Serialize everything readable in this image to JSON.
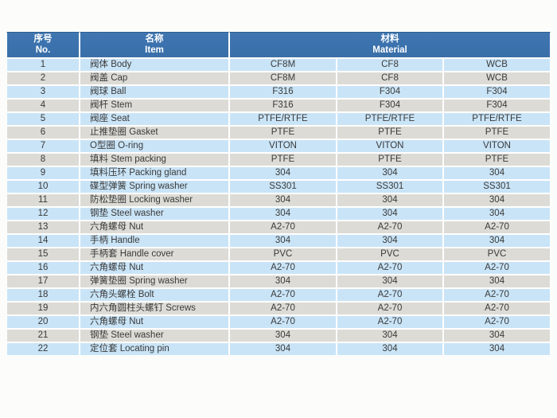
{
  "colors": {
    "header_bg": "#3b72ad",
    "header_text": "#ffffff",
    "row_blue": "#c9e4f7",
    "row_gray": "#dcdbd5",
    "cell_text": "#3a3a3a",
    "page_bg": "#fcfcfa"
  },
  "header": {
    "no_zh": "序号",
    "no_en": "No.",
    "item_zh": "名称",
    "item_en": "Item",
    "material_zh": "材料",
    "material_en": "Material"
  },
  "rows": [
    {
      "no": "1",
      "item": "阀体 Body",
      "materials": [
        "CF8M",
        "CF8",
        "WCB"
      ],
      "shade": "blue"
    },
    {
      "no": "2",
      "item": "阀盖 Cap",
      "materials": [
        "CF8M",
        "CF8",
        "WCB"
      ],
      "shade": "gray"
    },
    {
      "no": "3",
      "item": "阀球 Ball",
      "materials": [
        "F316",
        "F304",
        "F304"
      ],
      "shade": "blue"
    },
    {
      "no": "4",
      "item": "阀杆 Stem",
      "materials": [
        "F316",
        "F304",
        "F304"
      ],
      "shade": "gray"
    },
    {
      "no": "5",
      "item": "阀座 Seat",
      "materials": [
        "PTFE/RTFE",
        "PTFE/RTFE",
        "PTFE/RTFE"
      ],
      "shade": "blue"
    },
    {
      "no": "6",
      "item": "止推垫圈 Gasket",
      "materials": [
        "PTFE",
        "PTFE",
        "PTFE"
      ],
      "shade": "gray"
    },
    {
      "no": "7",
      "item": "O型圈 O-ring",
      "materials": [
        "VITON",
        "VITON",
        "VITON"
      ],
      "shade": "blue"
    },
    {
      "no": "8",
      "item": "填料 Stem packing",
      "materials": [
        "PTFE",
        "PTFE",
        "PTFE"
      ],
      "shade": "gray"
    },
    {
      "no": "9",
      "item": "填料压环 Packing gland",
      "materials": [
        "304",
        "304",
        "304"
      ],
      "shade": "blue"
    },
    {
      "no": "10",
      "item": "碟型弹簧 Spring washer",
      "materials": [
        "SS301",
        "SS301",
        "SS301"
      ],
      "shade": "blue"
    },
    {
      "no": "11",
      "item": "防松垫圈 Locking washer",
      "materials": [
        "304",
        "304",
        "304"
      ],
      "shade": "gray"
    },
    {
      "no": "12",
      "item": "钢垫 Steel washer",
      "materials": [
        "304",
        "304",
        "304"
      ],
      "shade": "blue"
    },
    {
      "no": "13",
      "item": "六角螺母 Nut",
      "materials": [
        "A2-70",
        "A2-70",
        "A2-70"
      ],
      "shade": "gray"
    },
    {
      "no": "14",
      "item": "手柄 Handle",
      "materials": [
        "304",
        "304",
        "304"
      ],
      "shade": "blue"
    },
    {
      "no": "15",
      "item": "手柄套 Handle cover",
      "materials": [
        "PVC",
        "PVC",
        "PVC"
      ],
      "shade": "gray"
    },
    {
      "no": "16",
      "item": "六角螺母 Nut",
      "materials": [
        "A2-70",
        "A2-70",
        "A2-70"
      ],
      "shade": "blue"
    },
    {
      "no": "17",
      "item": "弹簧垫圈 Spring washer",
      "materials": [
        "304",
        "304",
        "304"
      ],
      "shade": "gray"
    },
    {
      "no": "18",
      "item": "六角头螺栓 Bolt",
      "materials": [
        "A2-70",
        "A2-70",
        "A2-70"
      ],
      "shade": "blue"
    },
    {
      "no": "19",
      "item": "内六角圆柱头螺钉 Screws",
      "materials": [
        "A2-70",
        "A2-70",
        "A2-70"
      ],
      "shade": "gray"
    },
    {
      "no": "20",
      "item": "六角螺母 Nut",
      "materials": [
        "A2-70",
        "A2-70",
        "A2-70"
      ],
      "shade": "blue"
    },
    {
      "no": "21",
      "item": "钢垫 Steel washer",
      "materials": [
        "304",
        "304",
        "304"
      ],
      "shade": "gray"
    },
    {
      "no": "22",
      "item": "定位套 Locating pin",
      "materials": [
        "304",
        "304",
        "304"
      ],
      "shade": "blue"
    }
  ]
}
